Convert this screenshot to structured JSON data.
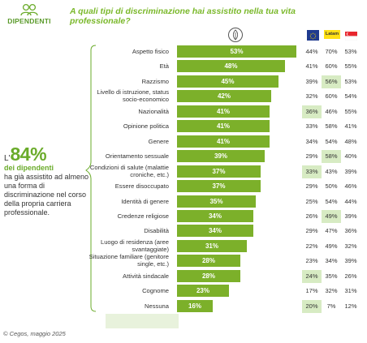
{
  "header": {
    "brand": "DIPENDENTI",
    "question": "A quali tipi di discriminazione hai assistito nella tua vita professionale?"
  },
  "callout": {
    "prefix": "L'",
    "number": "84%",
    "subtitle": "dei dipendenti",
    "body": "ha già assistito ad almeno una forma di discriminazione nel corso della propria carriera professionale."
  },
  "regions": {
    "latam_label": "Latam"
  },
  "source": "© Cegos, maggio 2025",
  "colors": {
    "bar": "#7cb02a",
    "highlight": "#d7ebc3",
    "accent": "#6aab2a"
  },
  "chart_data": {
    "type": "bar",
    "orientation": "horizontal",
    "title": "A quali tipi di discriminazione hai assistito nella tua vita professionale?",
    "categories": [
      "Aspetto fisico",
      "Età",
      "Razzismo",
      "Livello di istruzione, status socio-economico",
      "Nazionalità",
      "Opinione politica",
      "Genere",
      "Orientamento sessuale",
      "Condizioni di salute (malattie croniche, etc.)",
      "Essere disoccupato",
      "Identità di genere",
      "Credenze religiose",
      "Disabilità",
      "Luogo di residenza (aree svantaggiate)",
      "Situazione familiare (genitore single, etc.)",
      "Attività sindacale",
      "Cognome",
      "Nessuna"
    ],
    "values": [
      53,
      48,
      45,
      42,
      41,
      41,
      41,
      39,
      37,
      37,
      35,
      34,
      34,
      31,
      28,
      28,
      23,
      16
    ],
    "value_labels": [
      "53%",
      "48%",
      "45%",
      "42%",
      "41%",
      "41%",
      "41%",
      "39%",
      "37%",
      "37%",
      "35%",
      "34%",
      "34%",
      "31%",
      "28%",
      "28%",
      "23%",
      "16%"
    ],
    "regional": {
      "columns": [
        "EU",
        "Latam",
        "SG"
      ],
      "values": [
        [
          "44%",
          "70%",
          "53%"
        ],
        [
          "41%",
          "60%",
          "55%"
        ],
        [
          "39%",
          "56%",
          "53%"
        ],
        [
          "32%",
          "60%",
          "54%"
        ],
        [
          "36%",
          "46%",
          "55%"
        ],
        [
          "33%",
          "58%",
          "41%"
        ],
        [
          "34%",
          "54%",
          "48%"
        ],
        [
          "29%",
          "58%",
          "40%"
        ],
        [
          "33%",
          "43%",
          "39%"
        ],
        [
          "29%",
          "50%",
          "46%"
        ],
        [
          "25%",
          "54%",
          "44%"
        ],
        [
          "26%",
          "49%",
          "39%"
        ],
        [
          "29%",
          "47%",
          "36%"
        ],
        [
          "22%",
          "49%",
          "32%"
        ],
        [
          "23%",
          "34%",
          "39%"
        ],
        [
          "24%",
          "35%",
          "26%"
        ],
        [
          "17%",
          "32%",
          "31%"
        ],
        [
          "20%",
          "7%",
          "12%"
        ]
      ],
      "highlighted": [
        [
          false,
          false,
          false
        ],
        [
          false,
          false,
          false
        ],
        [
          false,
          true,
          false
        ],
        [
          false,
          false,
          false
        ],
        [
          true,
          false,
          false
        ],
        [
          false,
          false,
          false
        ],
        [
          false,
          false,
          false
        ],
        [
          false,
          true,
          false
        ],
        [
          true,
          false,
          false
        ],
        [
          false,
          false,
          false
        ],
        [
          false,
          false,
          false
        ],
        [
          false,
          true,
          false
        ],
        [
          false,
          false,
          false
        ],
        [
          false,
          false,
          false
        ],
        [
          false,
          false,
          false
        ],
        [
          true,
          false,
          false
        ],
        [
          false,
          false,
          false
        ],
        [
          true,
          false,
          false
        ]
      ]
    },
    "xlim": [
      0,
      100
    ]
  }
}
